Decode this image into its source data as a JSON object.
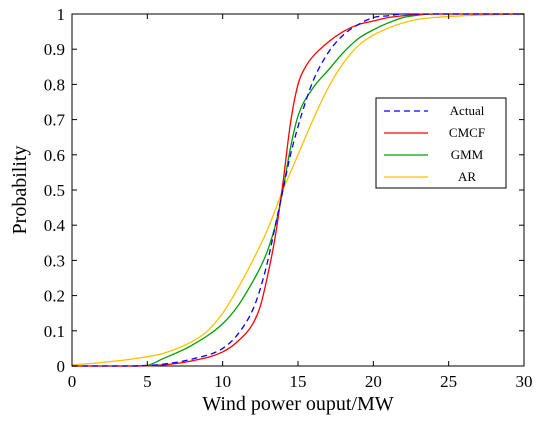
{
  "chart_data": {
    "type": "line",
    "title": "",
    "xlabel": "Wind power ouput/MW",
    "ylabel": "Probability",
    "xlim": [
      0,
      30
    ],
    "ylim": [
      0,
      1
    ],
    "x_ticks": [
      "0",
      "5",
      "10",
      "15",
      "20",
      "25",
      "30"
    ],
    "y_ticks": [
      "0",
      "0.1",
      "0.2",
      "0.3",
      "0.4",
      "0.5",
      "0.6",
      "0.7",
      "0.8",
      "0.9",
      "1"
    ],
    "grid": false,
    "legend_position": "right, upper-middle",
    "series": [
      {
        "name": "Actual",
        "color": "#0000ff",
        "dashed": true,
        "x": [
          0,
          4,
          6,
          8,
          10,
          11,
          12,
          12.5,
          13,
          13.5,
          14,
          14.5,
          15,
          15.5,
          16,
          17,
          18,
          19,
          20,
          21,
          22,
          23,
          25,
          30
        ],
        "y": [
          0,
          0,
          0.005,
          0.02,
          0.05,
          0.09,
          0.16,
          0.22,
          0.3,
          0.4,
          0.5,
          0.6,
          0.68,
          0.75,
          0.81,
          0.89,
          0.94,
          0.97,
          0.99,
          0.995,
          1.0,
          1.0,
          1.0,
          1.0
        ]
      },
      {
        "name": "CMCF",
        "color": "#ff0000",
        "dashed": false,
        "x": [
          0,
          4,
          6,
          8,
          10,
          11,
          12,
          12.5,
          13,
          13.5,
          14,
          14.5,
          15,
          15.5,
          16,
          17,
          18,
          19,
          20,
          21,
          22,
          23,
          24,
          25,
          30
        ],
        "y": [
          0,
          0,
          0.003,
          0.015,
          0.04,
          0.07,
          0.12,
          0.17,
          0.26,
          0.37,
          0.52,
          0.69,
          0.8,
          0.85,
          0.88,
          0.92,
          0.95,
          0.97,
          0.98,
          0.99,
          0.995,
          0.999,
          1.0,
          1.0,
          1.0
        ]
      },
      {
        "name": "GMM",
        "color": "#00a000",
        "dashed": false,
        "x": [
          0,
          4,
          5,
          6,
          8,
          10,
          11,
          12,
          12.5,
          13,
          13.5,
          14,
          14.5,
          15,
          16,
          17,
          18,
          19,
          20,
          21,
          22,
          23,
          24,
          25,
          30
        ],
        "y": [
          0,
          0,
          0.002,
          0.02,
          0.06,
          0.12,
          0.17,
          0.24,
          0.28,
          0.33,
          0.4,
          0.5,
          0.62,
          0.71,
          0.79,
          0.84,
          0.89,
          0.93,
          0.955,
          0.975,
          0.99,
          0.997,
          1.0,
          1.0,
          1.0
        ]
      },
      {
        "name": "AR",
        "color": "#ffc000",
        "dashed": false,
        "x": [
          0,
          2,
          4,
          6,
          8,
          9,
          10,
          11,
          12,
          13,
          14,
          15,
          16,
          17,
          18,
          19,
          20,
          21,
          22,
          23,
          24,
          26,
          28,
          30
        ],
        "y": [
          0.003,
          0.01,
          0.02,
          0.035,
          0.07,
          0.1,
          0.15,
          0.22,
          0.3,
          0.39,
          0.5,
          0.6,
          0.7,
          0.79,
          0.86,
          0.91,
          0.94,
          0.96,
          0.975,
          0.985,
          0.99,
          0.995,
          0.998,
          1.0
        ]
      }
    ]
  }
}
